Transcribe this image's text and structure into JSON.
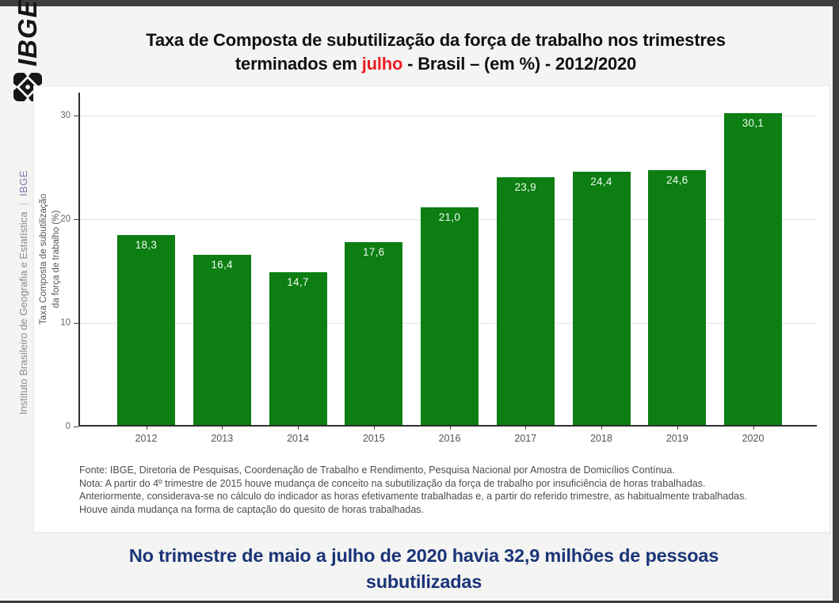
{
  "branding": {
    "logo_text": "IBGE",
    "institution": "Instituto Brasileiro de Geografia e Estatística",
    "divider": "|",
    "suffix": "IBGE"
  },
  "title": {
    "line1": "Taxa de Composta de subutilização da força de trabalho nos trimestres",
    "line2_pre": "terminados em ",
    "line2_highlight": "julho",
    "line2_post": " - Brasil – (em %) - 2012/2020",
    "highlight_color": "#ee1c25"
  },
  "chart_data": {
    "type": "bar",
    "categories": [
      "2012",
      "2013",
      "2014",
      "2015",
      "2016",
      "2017",
      "2018",
      "2019",
      "2020"
    ],
    "values": [
      18.3,
      16.4,
      14.7,
      17.6,
      21.0,
      23.9,
      24.4,
      24.6,
      30.1
    ],
    "value_labels": [
      "18,3",
      "16,4",
      "14,7",
      "17,6",
      "21,0",
      "23,9",
      "24,4",
      "24,6",
      "30,1"
    ],
    "ylabel_lines": [
      "Taxa Composta de subutilização",
      "da força de trabalho (%)"
    ],
    "yticks": [
      0,
      10,
      20,
      30
    ],
    "ylim": [
      0,
      32.2
    ],
    "grid": true,
    "legend": "none",
    "bar_color": "#0c7e12",
    "label_color": "#f2fbf2"
  },
  "footer": {
    "lines": [
      "Fonte: IBGE, Diretoria de Pesquisas, Coordenação de Trabalho e Rendimento, Pesquisa Nacional por Amostra de Domicílios Contínua.",
      "Nota: A partir do 4º trimestre de 2015 houve mudança de conceito na subutilização da força de trabalho por insuficiência de horas trabalhadas.",
      "Anteriormente, considerava-se no cálculo do indicador as horas efetivamente trabalhadas e, a partir do referido trimestre, as habitualmente trabalhadas.",
      "Houve ainda mudança na forma de captação do quesito de horas trabalhadas."
    ]
  },
  "headline": {
    "line1": "No trimestre de maio a julho de 2020 havia 32,9 milhões de pessoas",
    "line2": "subutilizadas",
    "color": "#1a3478"
  }
}
